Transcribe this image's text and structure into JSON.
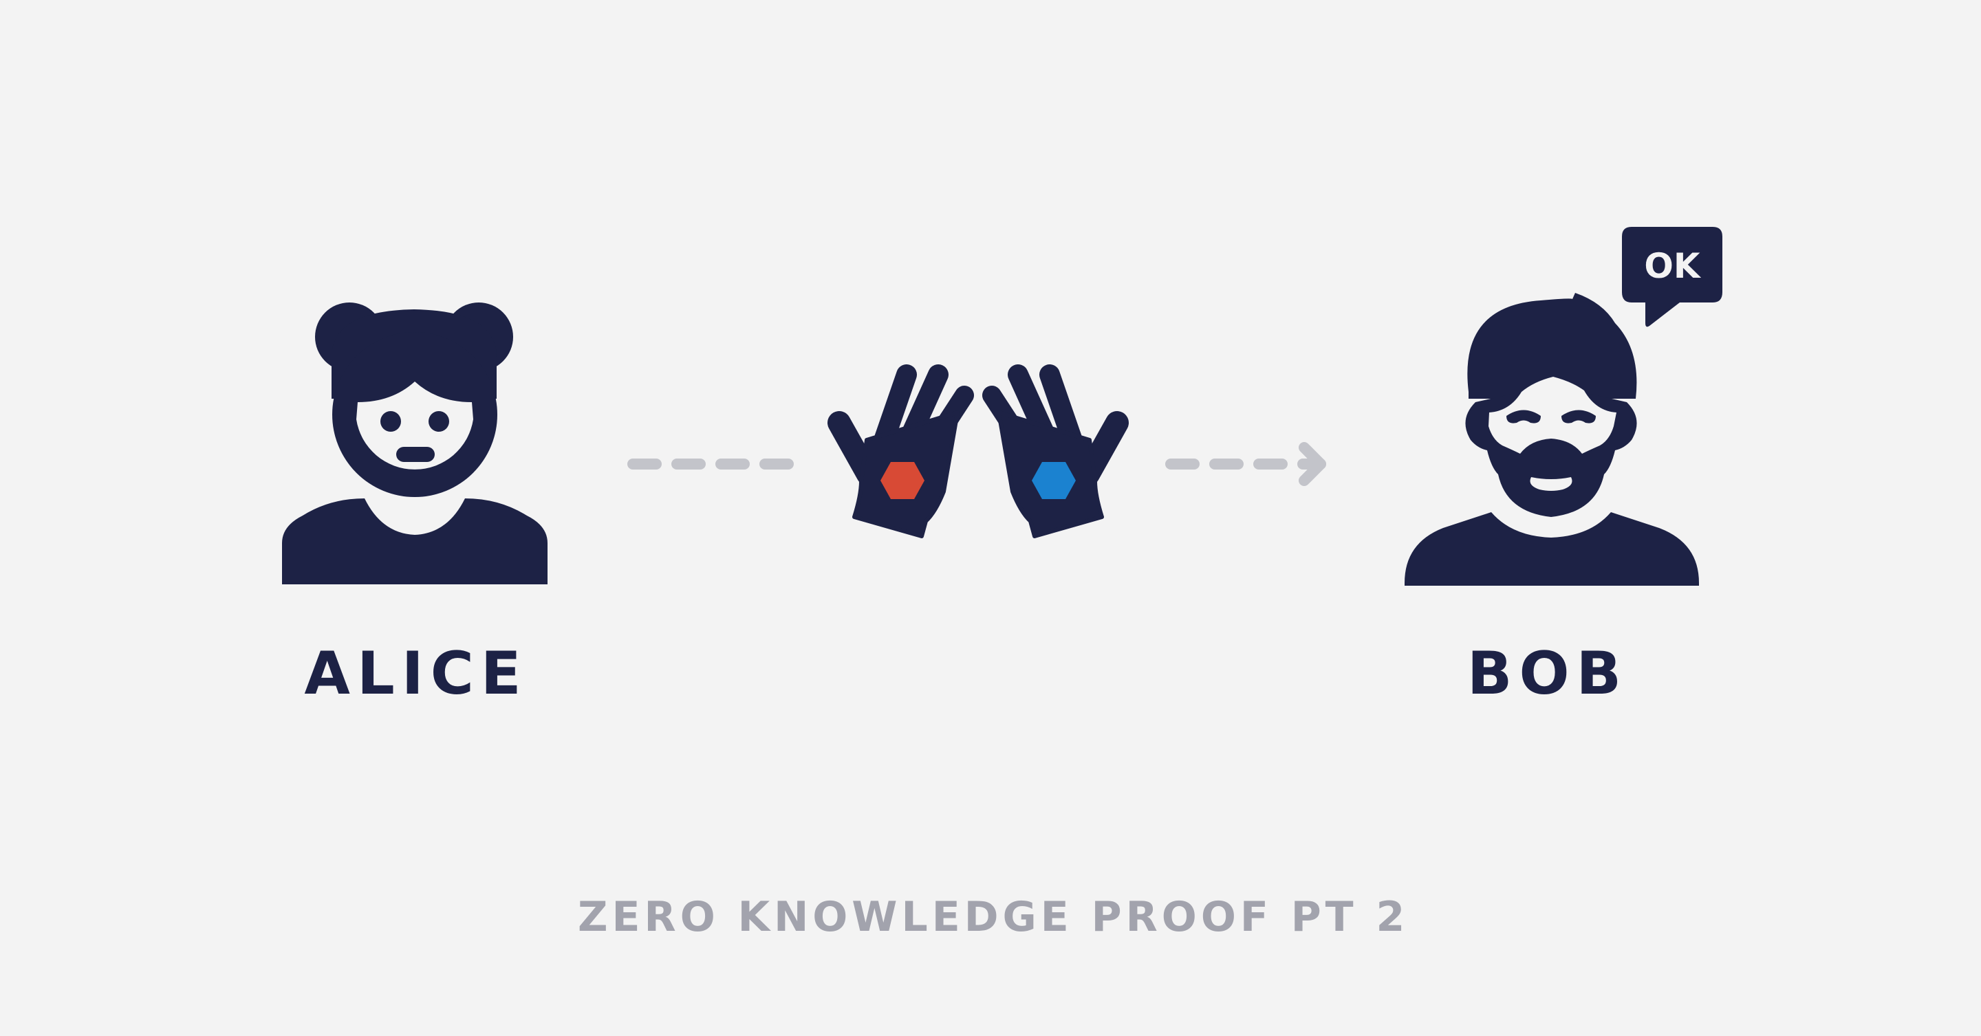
{
  "diagram": {
    "caption": "ZERO KNOWLEDGE PROOF PT 2",
    "actors": {
      "alice": {
        "label": "ALICE",
        "icon": "girl-avatar-icon"
      },
      "bob": {
        "label": "BOB",
        "icon": "bearded-man-avatar-icon",
        "speech": "OK"
      }
    },
    "center_icon": "gloved-hands-icon",
    "arrows": [
      "dashed-line",
      "dashed-arrow"
    ],
    "colors": {
      "background": "#f3f3f3",
      "ink": "#1d2245",
      "caption": "#a2a3ad",
      "arrow": "#c3c4ca",
      "red_hex": "#d84a35",
      "blue_hex": "#1b82d0"
    }
  }
}
